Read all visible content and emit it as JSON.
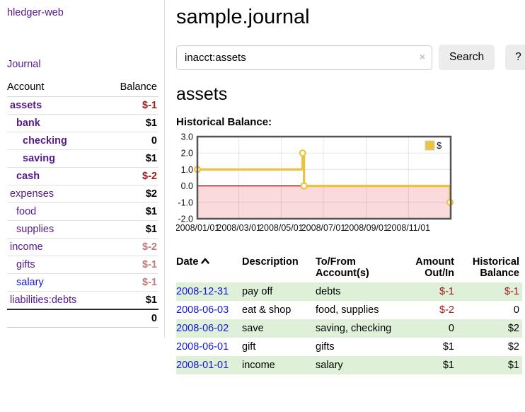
{
  "brand": "hledger-web",
  "nav": {
    "journal_label": "Journal"
  },
  "sidebar": {
    "header": {
      "account": "Account",
      "balance": "Balance"
    },
    "accounts": [
      {
        "label": "assets",
        "depth": 1,
        "bold": true,
        "visited": true,
        "balance": "$-1",
        "balance_style": "neg"
      },
      {
        "label": "bank",
        "depth": 2,
        "bold": true,
        "visited": true,
        "balance": "$1",
        "balance_style": "pos"
      },
      {
        "label": "checking",
        "depth": 3,
        "bold": true,
        "visited": true,
        "balance": "0",
        "balance_style": "pos"
      },
      {
        "label": "saving",
        "depth": 3,
        "bold": true,
        "visited": true,
        "balance": "$1",
        "balance_style": "pos"
      },
      {
        "label": "cash",
        "depth": 2,
        "bold": true,
        "visited": true,
        "balance": "$-2",
        "balance_style": "neg"
      },
      {
        "label": "expenses",
        "depth": 1,
        "bold": false,
        "visited": true,
        "balance": "$2",
        "balance_style": "pos"
      },
      {
        "label": "food",
        "depth": 2,
        "bold": false,
        "visited": true,
        "balance": "$1",
        "balance_style": "pos"
      },
      {
        "label": "supplies",
        "depth": 2,
        "bold": false,
        "visited": true,
        "balance": "$1",
        "balance_style": "pos"
      },
      {
        "label": "income",
        "depth": 1,
        "bold": false,
        "visited": true,
        "balance": "$-2",
        "balance_style": "neg-soft"
      },
      {
        "label": "gifts",
        "depth": 2,
        "bold": false,
        "visited": true,
        "balance": "$-1",
        "balance_style": "neg-soft"
      },
      {
        "label": "salary",
        "depth": 2,
        "bold": false,
        "visited": false,
        "balance": "$-1",
        "balance_style": "neg-soft"
      },
      {
        "label": "liabilities:debts",
        "depth": 1,
        "bold": false,
        "visited": true,
        "balance": "$1",
        "balance_style": "pos"
      }
    ],
    "total": "0"
  },
  "header": {
    "title": "sample.journal"
  },
  "search": {
    "value": "inacct:assets",
    "clear_icon": "×",
    "button_label": "Search",
    "help_label": "?"
  },
  "account_page": {
    "heading": "assets",
    "chart_title": "Historical Balance:"
  },
  "chart_data": {
    "type": "line",
    "title": "Historical Balance:",
    "legend": "$",
    "legend_position": "top-right",
    "x_range": [
      "2008-01-01",
      "2009-01-01"
    ],
    "ylim": [
      -2.0,
      3.0
    ],
    "yticks": [
      "3.0",
      "2.0",
      "1.0",
      "0.0",
      "-1.0",
      "-2.0"
    ],
    "xticks": [
      "2008/01/01",
      "2008/03/01",
      "2008/05/01",
      "2008/07/01",
      "2008/09/01",
      "2008/11/01"
    ],
    "series": [
      {
        "name": "$",
        "style": "steps",
        "points": [
          [
            "2008-01-01",
            1
          ],
          [
            "2008-06-01",
            2
          ],
          [
            "2008-06-03",
            0
          ],
          [
            "2008-12-31",
            -1
          ]
        ]
      }
    ],
    "grid": true,
    "line_color": "#edc240",
    "marker_fill": "#ffffff",
    "negative_region_fill": "#fadada",
    "zero_line_color": "#8b0000",
    "border_color": "#545454"
  },
  "register": {
    "columns": [
      {
        "line1": "Date",
        "line2": "",
        "align": "left",
        "sorted": true
      },
      {
        "line1": "Description",
        "line2": "",
        "align": "left",
        "sorted": false
      },
      {
        "line1": "To/From",
        "line2": "Account(s)",
        "align": "left",
        "sorted": false
      },
      {
        "line1": "Amount",
        "line2": "Out/In",
        "align": "right",
        "sorted": false
      },
      {
        "line1": "Historical",
        "line2": "Balance",
        "align": "right",
        "sorted": false
      }
    ],
    "rows": [
      {
        "date": "2008-12-31",
        "description": "pay off",
        "accounts": "debts",
        "amount": "$-1",
        "amount_neg": true,
        "balance": "$-1",
        "balance_neg": true,
        "shaded": true
      },
      {
        "date": "2008-06-03",
        "description": "eat & shop",
        "accounts": "food, supplies",
        "amount": "$-2",
        "amount_neg": true,
        "balance": "0",
        "balance_neg": false,
        "shaded": false
      },
      {
        "date": "2008-06-02",
        "description": "save",
        "accounts": "saving, checking",
        "amount": "0",
        "amount_neg": false,
        "balance": "$2",
        "balance_neg": false,
        "shaded": true
      },
      {
        "date": "2008-06-01",
        "description": "gift",
        "accounts": "gifts",
        "amount": "$1",
        "amount_neg": false,
        "balance": "$2",
        "balance_neg": false,
        "shaded": false
      },
      {
        "date": "2008-01-01",
        "description": "income",
        "accounts": "salary",
        "amount": "$1",
        "amount_neg": false,
        "balance": "$1",
        "balance_neg": false,
        "shaded": true
      }
    ]
  },
  "colors": {
    "link_visited": "#551a8b",
    "link_unvisited": "#1414dd",
    "negative": "#9d1c1c",
    "negative_soft": "#bd7b7b",
    "row_shade": "#dff0d8",
    "accent_gold": "#edc240"
  }
}
